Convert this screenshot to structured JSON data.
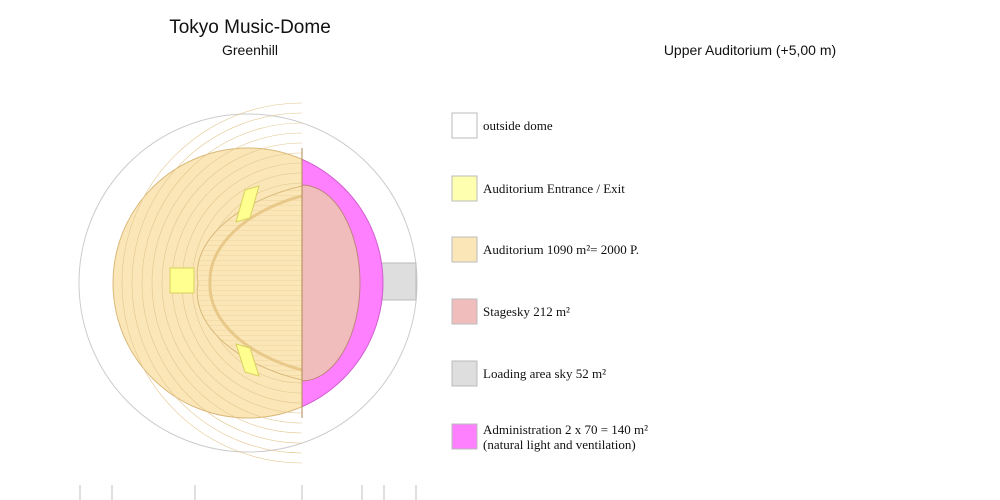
{
  "header": {
    "title": "Tokyo Music-Dome",
    "subtitle": "Greenhill",
    "view": "Upper Auditorium (+5,00 m)"
  },
  "legend": {
    "items": [
      {
        "label": "outside dome",
        "color": "#ffffff"
      },
      {
        "label": "Auditorium Entrance / Exit",
        "color": "#ffffb0"
      },
      {
        "label": "Auditorium 1090 m²= 2000 P.",
        "color": "#fbe6b8"
      },
      {
        "label": "Stagesky 212 m²",
        "color": "#f0bcbc"
      },
      {
        "label": "Loading area sky 52 m²",
        "color": "#dedede"
      },
      {
        "label": "Administration 2 x 70 = 140 m²",
        "note": "(natural light and ventilation)",
        "color": "#ff80ff"
      }
    ]
  }
}
